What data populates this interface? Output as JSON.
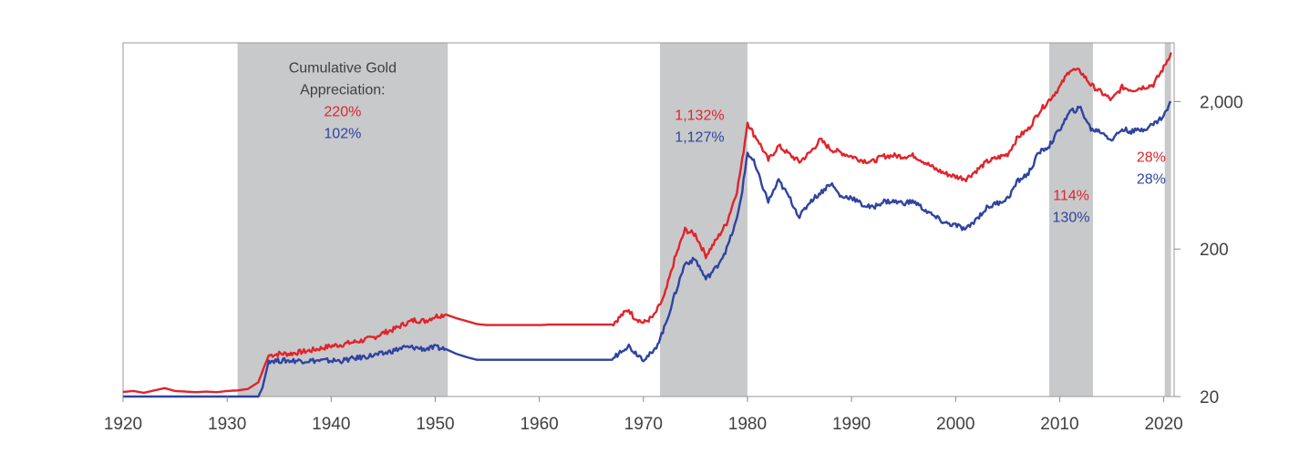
{
  "chart_data": {
    "type": "line",
    "title": "",
    "xlabel": "",
    "ylabel": "",
    "yscale": "log",
    "xlim": [
      1920,
      2021
    ],
    "ylim": [
      20,
      5000
    ],
    "x_ticks": [
      1920,
      1930,
      1940,
      1950,
      1960,
      1970,
      1980,
      1990,
      2000,
      2010,
      2020
    ],
    "x_tick_labels": [
      "1920",
      "1930",
      "1940",
      "1950",
      "1960",
      "1970",
      "1980",
      "1990",
      "2000",
      "2010",
      "2020"
    ],
    "y_ticks": [
      20,
      200,
      2000
    ],
    "y_tick_labels": [
      "20",
      "200",
      "2,000"
    ],
    "colors": {
      "series_red": "#e0242b",
      "series_blue": "#2f43a0",
      "shade": "#c8c9cb",
      "axis": "#8a8a8a"
    },
    "shaded_periods": [
      {
        "start": 1931.0,
        "end": 1951.2
      },
      {
        "start": 1971.6,
        "end": 1980.0
      },
      {
        "start": 2009.0,
        "end": 2013.2
      },
      {
        "start": 2020.1,
        "end": 2020.7
      }
    ],
    "annotations": [
      {
        "lines": [
          {
            "text": "Cumulative Gold",
            "color": "#404040"
          },
          {
            "text": "Appreciation:",
            "color": "#404040"
          },
          {
            "text": "220%",
            "color": "#e0242b"
          },
          {
            "text": "102%",
            "color": "#2f43a0"
          }
        ],
        "x": 1941.1,
        "y_top": 3150
      },
      {
        "lines": [
          {
            "text": "1,132%",
            "color": "#e0242b"
          },
          {
            "text": "1,127%",
            "color": "#2f43a0"
          }
        ],
        "x": 1975.4,
        "y_top": 1500
      },
      {
        "lines": [
          {
            "text": "114%",
            "color": "#e0242b"
          },
          {
            "text": "130%",
            "color": "#2f43a0"
          }
        ],
        "x": 2011.1,
        "y_top": 430
      },
      {
        "lines": [
          {
            "text": "28%",
            "color": "#e0242b"
          },
          {
            "text": "28%",
            "color": "#2f43a0"
          }
        ],
        "x": 2018.8,
        "y_top": 780
      }
    ],
    "series": [
      {
        "name": "Red series",
        "color": "#e0242b",
        "points": [
          [
            1920,
            21.5
          ],
          [
            1921,
            21.8
          ],
          [
            1922,
            21.2
          ],
          [
            1923,
            22.0
          ],
          [
            1924,
            22.8
          ],
          [
            1925,
            21.8
          ],
          [
            1926,
            21.6
          ],
          [
            1927,
            21.4
          ],
          [
            1928,
            21.6
          ],
          [
            1929,
            21.4
          ],
          [
            1930,
            21.8
          ],
          [
            1931,
            22.0
          ],
          [
            1932,
            22.5
          ],
          [
            1933,
            25.0
          ],
          [
            1933.5,
            31.0
          ],
          [
            1934,
            38.0
          ],
          [
            1935,
            39.0
          ],
          [
            1936,
            39.0
          ],
          [
            1937,
            40.0
          ],
          [
            1938,
            41.0
          ],
          [
            1939,
            42.5
          ],
          [
            1940,
            44.0
          ],
          [
            1941,
            45.0
          ],
          [
            1942,
            46.5
          ],
          [
            1943,
            48.0
          ],
          [
            1944,
            50.0
          ],
          [
            1945,
            54.0
          ],
          [
            1946,
            57.0
          ],
          [
            1947,
            62.0
          ],
          [
            1948,
            66.0
          ],
          [
            1949,
            65.0
          ],
          [
            1950,
            70.0
          ],
          [
            1951,
            72.0
          ],
          [
            1952,
            68.0
          ],
          [
            1953,
            65.0
          ],
          [
            1954,
            62.0
          ],
          [
            1955,
            61.0
          ],
          [
            1956,
            61.0
          ],
          [
            1957,
            61.0
          ],
          [
            1958,
            61.0
          ],
          [
            1959,
            61.0
          ],
          [
            1960,
            61.0
          ],
          [
            1961,
            61.5
          ],
          [
            1962,
            61.5
          ],
          [
            1963,
            61.5
          ],
          [
            1964,
            61.5
          ],
          [
            1965,
            61.5
          ],
          [
            1966,
            61.5
          ],
          [
            1967,
            61.5
          ],
          [
            1968,
            72.0
          ],
          [
            1968.6,
            78.0
          ],
          [
            1969,
            70.0
          ],
          [
            1970,
            63.0
          ],
          [
            1971,
            70.0
          ],
          [
            1972,
            95.0
          ],
          [
            1973,
            170.0
          ],
          [
            1974,
            270.0
          ],
          [
            1975,
            250.0
          ],
          [
            1976,
            180.0
          ],
          [
            1977,
            230.0
          ],
          [
            1978,
            300.0
          ],
          [
            1979,
            500.0
          ],
          [
            1979.5,
            800.0
          ],
          [
            1980,
            1450.0
          ],
          [
            1980.6,
            1200.0
          ],
          [
            1981,
            1100.0
          ],
          [
            1982,
            800.0
          ],
          [
            1983,
            1000.0
          ],
          [
            1984,
            880.0
          ],
          [
            1985,
            780.0
          ],
          [
            1986,
            900.0
          ],
          [
            1987,
            1100.0
          ],
          [
            1988,
            950.0
          ],
          [
            1989,
            900.0
          ],
          [
            1990,
            850.0
          ],
          [
            1991,
            800.0
          ],
          [
            1992,
            780.0
          ],
          [
            1993,
            850.0
          ],
          [
            1994,
            860.0
          ],
          [
            1995,
            850.0
          ],
          [
            1996,
            860.0
          ],
          [
            1997,
            780.0
          ],
          [
            1998,
            700.0
          ],
          [
            1999,
            650.0
          ],
          [
            2000,
            620.0
          ],
          [
            2001,
            600.0
          ],
          [
            2002,
            680.0
          ],
          [
            2003,
            780.0
          ],
          [
            2004,
            830.0
          ],
          [
            2005,
            880.0
          ],
          [
            2006,
            1150.0
          ],
          [
            2007,
            1300.0
          ],
          [
            2008,
            1700.0
          ],
          [
            2009,
            2050.0
          ],
          [
            2010,
            2500.0
          ],
          [
            2011,
            3300.0
          ],
          [
            2012,
            3200.0
          ],
          [
            2013,
            2600.0
          ],
          [
            2014,
            2300.0
          ],
          [
            2015,
            2050.0
          ],
          [
            2016,
            2500.0
          ],
          [
            2017,
            2400.0
          ],
          [
            2018,
            2500.0
          ],
          [
            2019,
            2600.0
          ],
          [
            2020,
            3400.0
          ],
          [
            2020.7,
            4300.0
          ]
        ]
      },
      {
        "name": "Blue series",
        "color": "#2f43a0",
        "points": [
          [
            1920,
            20.0
          ],
          [
            1921,
            20.0
          ],
          [
            1922,
            20.0
          ],
          [
            1923,
            20.0
          ],
          [
            1924,
            20.0
          ],
          [
            1925,
            20.0
          ],
          [
            1926,
            20.0
          ],
          [
            1927,
            20.0
          ],
          [
            1928,
            20.0
          ],
          [
            1929,
            20.0
          ],
          [
            1930,
            20.0
          ],
          [
            1931,
            20.0
          ],
          [
            1932,
            20.0
          ],
          [
            1933,
            20.0
          ],
          [
            1933.4,
            23.0
          ],
          [
            1934,
            35.0
          ],
          [
            1935,
            35.0
          ],
          [
            1936,
            35.0
          ],
          [
            1937,
            35.0
          ],
          [
            1938,
            35.0
          ],
          [
            1939,
            35.0
          ],
          [
            1940,
            35.0
          ],
          [
            1941,
            35.0
          ],
          [
            1942,
            36.0
          ],
          [
            1943,
            37.0
          ],
          [
            1944,
            38.0
          ],
          [
            1945,
            39.0
          ],
          [
            1946,
            41.0
          ],
          [
            1947,
            43.0
          ],
          [
            1948,
            43.0
          ],
          [
            1949,
            42.0
          ],
          [
            1950,
            43.0
          ],
          [
            1951,
            42.0
          ],
          [
            1952,
            39.0
          ],
          [
            1953,
            37.0
          ],
          [
            1954,
            35.5
          ],
          [
            1955,
            35.5
          ],
          [
            1956,
            35.5
          ],
          [
            1957,
            35.5
          ],
          [
            1958,
            35.5
          ],
          [
            1959,
            35.5
          ],
          [
            1960,
            35.5
          ],
          [
            1961,
            35.5
          ],
          [
            1962,
            35.5
          ],
          [
            1963,
            35.5
          ],
          [
            1964,
            35.5
          ],
          [
            1965,
            35.5
          ],
          [
            1966,
            35.5
          ],
          [
            1967,
            35.5
          ],
          [
            1968,
            42.0
          ],
          [
            1968.6,
            44.0
          ],
          [
            1969,
            41.0
          ],
          [
            1970,
            36.0
          ],
          [
            1971,
            40.0
          ],
          [
            1972,
            58.0
          ],
          [
            1973,
            97.0
          ],
          [
            1974,
            160.0
          ],
          [
            1975,
            170.0
          ],
          [
            1976,
            125.0
          ],
          [
            1977,
            150.0
          ],
          [
            1978,
            200.0
          ],
          [
            1979,
            320.0
          ],
          [
            1979.5,
            500.0
          ],
          [
            1980,
            900.0
          ],
          [
            1980.6,
            780.0
          ],
          [
            1981,
            650.0
          ],
          [
            1982,
            420.0
          ],
          [
            1983,
            580.0
          ],
          [
            1984,
            450.0
          ],
          [
            1985,
            330.0
          ],
          [
            1986,
            420.0
          ],
          [
            1987,
            480.0
          ],
          [
            1988,
            560.0
          ],
          [
            1989,
            450.0
          ],
          [
            1990,
            450.0
          ],
          [
            1991,
            400.0
          ],
          [
            1992,
            380.0
          ],
          [
            1993,
            420.0
          ],
          [
            1994,
            420.0
          ],
          [
            1995,
            410.0
          ],
          [
            1996,
            420.0
          ],
          [
            1997,
            370.0
          ],
          [
            1998,
            330.0
          ],
          [
            1999,
            300.0
          ],
          [
            2000,
            290.0
          ],
          [
            2001,
            270.0
          ],
          [
            2002,
            320.0
          ],
          [
            2003,
            380.0
          ],
          [
            2004,
            410.0
          ],
          [
            2005,
            440.0
          ],
          [
            2006,
            580.0
          ],
          [
            2007,
            650.0
          ],
          [
            2008,
            900.0
          ],
          [
            2009,
            1000.0
          ],
          [
            2010,
            1300.0
          ],
          [
            2011,
            1700.0
          ],
          [
            2012,
            1800.0
          ],
          [
            2013,
            1300.0
          ],
          [
            2014,
            1250.0
          ],
          [
            2015,
            1100.0
          ],
          [
            2016,
            1300.0
          ],
          [
            2017,
            1250.0
          ],
          [
            2018,
            1300.0
          ],
          [
            2019,
            1400.0
          ],
          [
            2020,
            1600.0
          ],
          [
            2020.7,
            2000.0
          ]
        ]
      }
    ]
  }
}
